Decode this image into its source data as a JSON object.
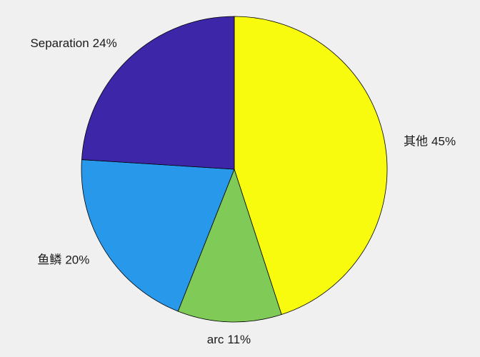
{
  "chart_data": {
    "type": "pie",
    "categories": [
      "其他",
      "arc",
      "鱼鳞",
      "Separation"
    ],
    "values": [
      45,
      11,
      20,
      24
    ],
    "value_labels": [
      "45%",
      "11%",
      "20%",
      "24%"
    ],
    "colors": [
      "#f9fb0e",
      "#80cb58",
      "#2898eb",
      "#3e26a8"
    ]
  }
}
